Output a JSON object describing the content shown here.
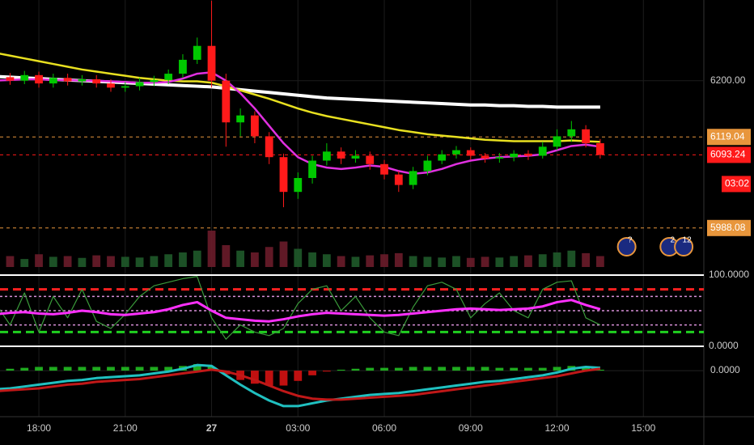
{
  "chart_data": {
    "type": "candlestick",
    "x": [
      16.5,
      17,
      17.5,
      18,
      18.5,
      19,
      19.5,
      20,
      20.5,
      21,
      21.5,
      22,
      22.5,
      23,
      23.5,
      24,
      24.5,
      25,
      25.5,
      26,
      26.5,
      27,
      27.5,
      28,
      28.5,
      29,
      29.5,
      30,
      30.5,
      31,
      31.5,
      32,
      32.5,
      33,
      33.5,
      34,
      34.5,
      35,
      35.5,
      36,
      36.5,
      37,
      37.5
    ],
    "xlim": [
      16.65,
      41.1
    ],
    "xticks": [
      {
        "value": 18,
        "label": "18:00"
      },
      {
        "value": 21,
        "label": "21:00"
      },
      {
        "value": 24,
        "label": "27"
      },
      {
        "value": 27,
        "label": "03:00"
      },
      {
        "value": 30,
        "label": "06:00"
      },
      {
        "value": 33,
        "label": "09:00"
      },
      {
        "value": 36,
        "label": "12:00"
      },
      {
        "value": 39,
        "label": "15:00"
      }
    ],
    "ylim": [
      5932,
      6316
    ],
    "yticks": [
      {
        "value": 6200,
        "label": "6200.00"
      }
    ],
    "open": [
      6198,
      6205,
      6200,
      6208,
      6196,
      6204,
      6199,
      6202,
      6196,
      6190,
      6192,
      6198,
      6201,
      6210,
      6230,
      6250,
      6200,
      6140,
      6150,
      6120,
      6090,
      6040,
      6060,
      6085,
      6098,
      6088,
      6092,
      6080,
      6065,
      6050,
      6070,
      6085,
      6094,
      6100,
      6092,
      6088,
      6090,
      6095,
      6092,
      6105,
      6120,
      6130,
      6110
    ],
    "high": [
      6211,
      6211,
      6214,
      6213,
      6210,
      6210,
      6208,
      6208,
      6202,
      6198,
      6204,
      6207,
      6216,
      6238,
      6262,
      6315,
      6210,
      6160,
      6156,
      6126,
      6095,
      6068,
      6092,
      6110,
      6104,
      6100,
      6098,
      6086,
      6070,
      6076,
      6092,
      6100,
      6106,
      6104,
      6096,
      6096,
      6100,
      6100,
      6112,
      6130,
      6142,
      6136,
      6116
    ],
    "low": [
      6192,
      6194,
      6195,
      6190,
      6190,
      6193,
      6193,
      6190,
      6184,
      6184,
      6186,
      6192,
      6195,
      6204,
      6224,
      6190,
      6105,
      6120,
      6110,
      6080,
      6018,
      6030,
      6052,
      6078,
      6080,
      6082,
      6072,
      6058,
      6040,
      6044,
      6064,
      6080,
      6088,
      6086,
      6082,
      6082,
      6084,
      6086,
      6088,
      6100,
      6112,
      6104,
      6088
    ],
    "close": [
      6205,
      6200,
      6208,
      6196,
      6204,
      6199,
      6202,
      6196,
      6190,
      6192,
      6198,
      6201,
      6210,
      6230,
      6250,
      6200,
      6140,
      6150,
      6120,
      6090,
      6040,
      6060,
      6085,
      6098,
      6088,
      6092,
      6080,
      6065,
      6050,
      6070,
      6085,
      6094,
      6100,
      6092,
      6088,
      6090,
      6095,
      6092,
      6105,
      6120,
      6130,
      6110,
      6093.24
    ],
    "up_color": "#00c800",
    "down_color": "#ff1a1a",
    "series": [
      {
        "color": "#ffffff",
        "values": [
          6206,
          6205,
          6204,
          6203,
          6202,
          6201,
          6200,
          6199,
          6198,
          6197,
          6196,
          6195,
          6194,
          6193,
          6192,
          6191,
          6189,
          6187,
          6185,
          6183,
          6181,
          6179,
          6177,
          6175,
          6174,
          6173,
          6172,
          6171,
          6170,
          6169,
          6168,
          6167,
          6166,
          6165,
          6165,
          6164,
          6164,
          6163,
          6163,
          6162,
          6162,
          6162,
          6162
        ]
      },
      {
        "color": "#e8e020",
        "values": [
          6240,
          6236,
          6232,
          6228,
          6224,
          6220,
          6216,
          6213,
          6210,
          6207,
          6204,
          6202,
          6200,
          6199,
          6199,
          6197,
          6192,
          6186,
          6180,
          6174,
          6167,
          6160,
          6154,
          6149,
          6145,
          6141,
          6137,
          6133,
          6129,
          6126,
          6123,
          6121,
          6119,
          6117,
          6115,
          6114,
          6113,
          6113,
          6113,
          6113,
          6114,
          6113,
          6112
        ]
      },
      {
        "color": "#e030e0",
        "values": [
          6200,
          6201,
          6202,
          6202,
          6201,
          6201,
          6200,
          6200,
          6199,
          6198,
          6197,
          6197,
          6198,
          6203,
          6210,
          6212,
          6200,
          6182,
          6160,
          6135,
          6110,
          6090,
          6080,
          6075,
          6073,
          6075,
          6078,
          6076,
          6070,
          6066,
          6068,
          6073,
          6080,
          6085,
          6088,
          6090,
          6091,
          6092,
          6094,
          6100,
          6106,
          6108,
          6105
        ]
      }
    ],
    "price_lines": [
      {
        "value": 6119.04,
        "label": "6119.04",
        "color": "#e8963c"
      },
      {
        "value": 6093.24,
        "label": "6093.24",
        "color": "#ff1a1a"
      },
      {
        "value": 5988.08,
        "label": "5988.08",
        "color": "#e8963c"
      }
    ],
    "countdown": "03:02",
    "events": [
      {
        "x": 38.42,
        "label": "?"
      },
      {
        "x": 39.9,
        "label": "2"
      },
      {
        "x": 40.4,
        "label": "12"
      }
    ],
    "volume": {
      "color": "#2c3f8a",
      "values": [
        25,
        30,
        22,
        35,
        28,
        30,
        25,
        32,
        30,
        28,
        26,
        30,
        35,
        40,
        45,
        100,
        60,
        45,
        40,
        55,
        70,
        50,
        40,
        35,
        30,
        28,
        32,
        35,
        38,
        30,
        28,
        26,
        30,
        25,
        28,
        26,
        30,
        32,
        35,
        40,
        45,
        38,
        30
      ]
    },
    "oscillator": {
      "ylim": [
        0,
        100
      ],
      "yticks": [
        {
          "value": 100,
          "label": "100.0000"
        },
        {
          "value": 0,
          "label": "0.0000"
        }
      ],
      "levels": [
        {
          "value": 80,
          "color": "#ff2020"
        },
        {
          "value": 70,
          "color": "#d890d8"
        },
        {
          "value": 50,
          "color": "#d890d8"
        },
        {
          "value": 30,
          "color": "#d890d8"
        },
        {
          "value": 20,
          "color": "#20d020"
        }
      ],
      "series": [
        {
          "color": "#3a9a3a",
          "values": [
            60,
            30,
            75,
            20,
            70,
            40,
            80,
            35,
            25,
            45,
            70,
            85,
            90,
            95,
            98,
            40,
            10,
            30,
            20,
            15,
            25,
            60,
            80,
            85,
            50,
            70,
            40,
            20,
            15,
            55,
            85,
            90,
            80,
            40,
            60,
            75,
            50,
            40,
            80,
            90,
            92,
            40,
            30
          ]
        },
        {
          "color": "#ff30ff",
          "values": [
            45,
            47,
            48,
            46,
            45,
            47,
            50,
            48,
            45,
            44,
            46,
            48,
            52,
            58,
            62,
            50,
            40,
            38,
            36,
            35,
            38,
            42,
            45,
            47,
            46,
            45,
            44,
            43,
            44,
            46,
            48,
            50,
            52,
            53,
            52,
            51,
            52,
            53,
            56,
            62,
            65,
            58,
            52
          ]
        }
      ]
    },
    "macd": {
      "ylim": [
        -45,
        20
      ],
      "yticks": [
        {
          "value": 0,
          "label": "0.0000"
        }
      ],
      "histogram": {
        "up_color": "#1faa1f",
        "down_color": "#c01010",
        "values": [
          2,
          2,
          3,
          4,
          4,
          4,
          4,
          4,
          4,
          4,
          4,
          4,
          4,
          5,
          7,
          4,
          -4,
          -10,
          -14,
          -16,
          -16,
          -11,
          -5,
          -1,
          1,
          2,
          3,
          3,
          3,
          4,
          4,
          4,
          4,
          4,
          4,
          3,
          3,
          3,
          3,
          4,
          5,
          4,
          1
        ]
      },
      "series": [
        {
          "color": "#20c0c0",
          "values": [
            -20,
            -19,
            -17,
            -15,
            -13,
            -11,
            -10,
            -8,
            -7,
            -6,
            -5,
            -3,
            -1,
            2,
            6,
            5,
            -5,
            -15,
            -24,
            -32,
            -38,
            -38,
            -35,
            -32,
            -30,
            -28,
            -26,
            -25,
            -24,
            -22,
            -20,
            -18,
            -16,
            -14,
            -12,
            -11,
            -9,
            -7,
            -5,
            -2,
            2,
            4,
            3
          ]
        },
        {
          "color": "#c01818",
          "values": [
            -22,
            -21,
            -20,
            -19,
            -17,
            -15,
            -14,
            -12,
            -11,
            -10,
            -9,
            -7,
            -5,
            -3,
            -1,
            1,
            -1,
            -5,
            -10,
            -16,
            -22,
            -27,
            -30,
            -31,
            -31,
            -30,
            -29,
            -28,
            -27,
            -26,
            -24,
            -22,
            -20,
            -18,
            -16,
            -14,
            -12,
            -10,
            -8,
            -6,
            -3,
            0,
            2
          ]
        }
      ]
    }
  }
}
